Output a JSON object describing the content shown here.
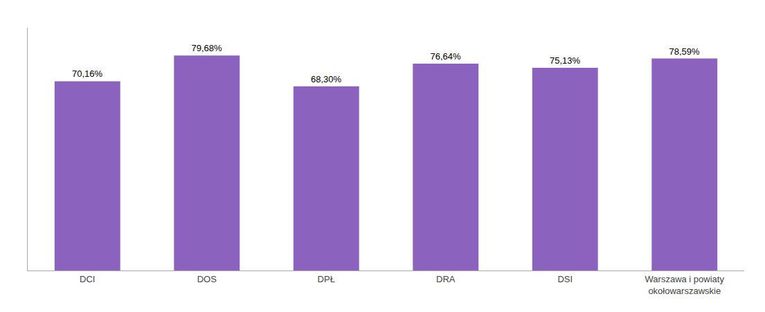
{
  "chart_data": {
    "type": "bar",
    "categories": [
      "DCI",
      "DOS",
      "DPŁ",
      "DRA",
      "DSI",
      "Warszawa i powiaty\nokołowarszawskie"
    ],
    "values": [
      70.16,
      79.68,
      68.3,
      76.64,
      75.13,
      78.59
    ],
    "value_labels": [
      "70,16%",
      "79,68%",
      "68,30%",
      "76,64%",
      "75,13%",
      "78,59%"
    ],
    "color": "#8B62BE",
    "ylim": [
      0,
      90
    ],
    "grid": false,
    "data_labels": true,
    "tick_labels": "x"
  }
}
